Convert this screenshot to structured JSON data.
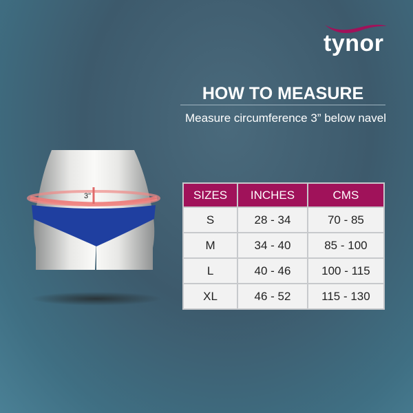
{
  "brand": {
    "logo_text": "tynor",
    "accent": "#a0125a"
  },
  "title": "HOW TO MEASURE",
  "subtitle": "Measure circumference 3” below navel",
  "figure": {
    "measure_label": "3\""
  },
  "size_table": {
    "headers": [
      "SIZES",
      "INCHES",
      "CMS"
    ],
    "rows": [
      [
        "S",
        "28 - 34",
        "70 - 85"
      ],
      [
        "M",
        "34 - 40",
        "85 - 100"
      ],
      [
        "L",
        "40 - 46",
        "100 - 115"
      ],
      [
        "XL",
        "46 - 52",
        "115 - 130"
      ]
    ]
  }
}
